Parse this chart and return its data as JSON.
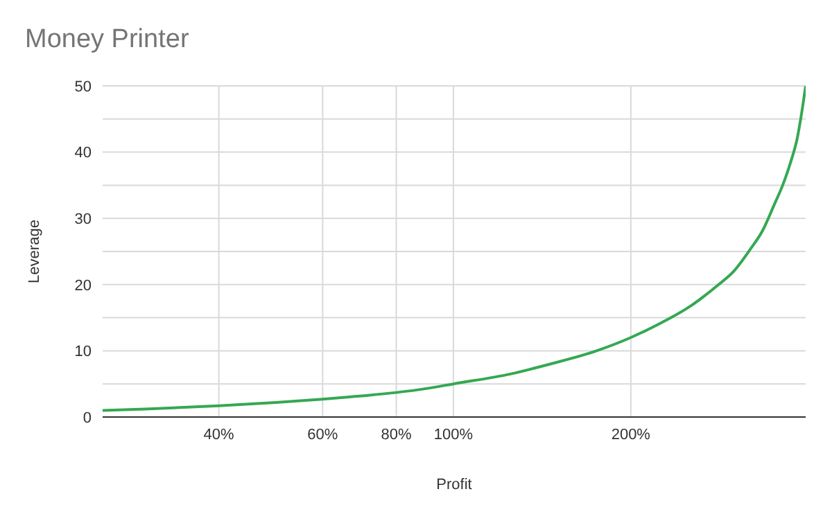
{
  "chart_data": {
    "type": "line",
    "title": "Money Printer",
    "xlabel": "Profit",
    "ylabel": "Leverage",
    "x": [
      25.4,
      30,
      40,
      50,
      60,
      70,
      80,
      90,
      100,
      125,
      146,
      175,
      200,
      225,
      253,
      280,
      299,
      320,
      334,
      350,
      362,
      375,
      383,
      390,
      396
    ],
    "series": [
      {
        "color": "#34a853",
        "values": [
          1,
          1.2,
          1.7,
          2.2,
          2.7,
          3.2,
          3.7,
          4.3,
          5,
          6.5,
          8,
          10,
          12,
          14.2,
          16.8,
          19.8,
          22,
          25.5,
          28,
          32,
          35,
          39,
          42,
          46,
          50
        ]
      }
    ],
    "log": "x",
    "xlim": [
      25.4,
      396
    ],
    "xticks": [
      {
        "value": 40,
        "label": "40%"
      },
      {
        "value": 60,
        "label": "60%"
      },
      {
        "value": 80,
        "label": "80%"
      },
      {
        "value": 100,
        "label": "100%"
      },
      {
        "value": 200,
        "label": "200%"
      }
    ],
    "ylim": [
      0,
      50
    ],
    "yticks": [
      0,
      {
        "value": 5,
        "label": null
      },
      10,
      {
        "value": 15,
        "label": null
      },
      20,
      {
        "value": 25,
        "label": null
      },
      30,
      {
        "value": 35,
        "label": null
      },
      40,
      {
        "value": 45,
        "label": null
      },
      50
    ],
    "grid": true,
    "legend": false,
    "marker": "none",
    "line_style": "solid"
  }
}
